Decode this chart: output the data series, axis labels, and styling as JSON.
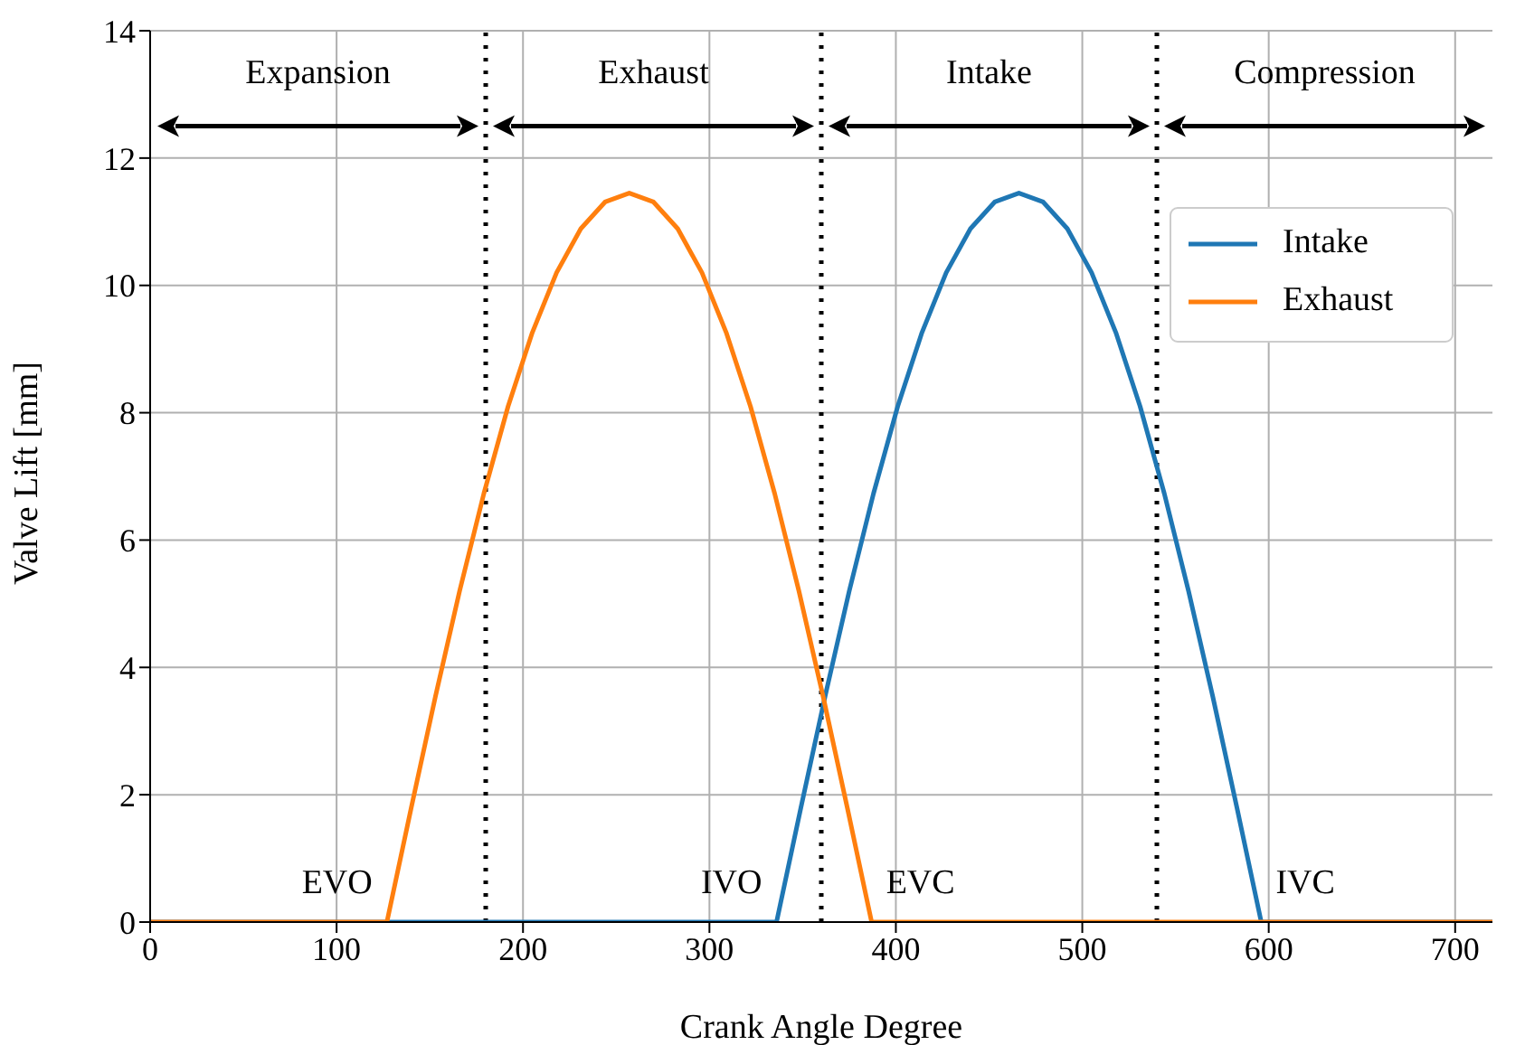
{
  "chart_data": {
    "type": "line",
    "xlabel": "Crank Angle Degree",
    "ylabel": "Valve Lift [mm]",
    "xlim": [
      0,
      720
    ],
    "ylim": [
      0,
      14
    ],
    "xticks": [
      0,
      100,
      200,
      300,
      400,
      500,
      600,
      700
    ],
    "yticks": [
      0,
      2,
      4,
      6,
      8,
      10,
      12,
      14
    ],
    "grid": true,
    "legend": "top right",
    "marker": "none",
    "line_style": "solid",
    "series": [
      {
        "name": "Intake",
        "color": "#1f77b4",
        "x": [
          0,
          336,
          349,
          362,
          375,
          388,
          401,
          414,
          427,
          440,
          453,
          466,
          479,
          492,
          505,
          518,
          531,
          544,
          557,
          570,
          583,
          596,
          720
        ],
        "values": [
          0,
          0,
          1.79,
          3.54,
          5.2,
          6.73,
          8.1,
          9.26,
          10.2,
          10.89,
          11.31,
          11.45,
          11.31,
          10.89,
          10.2,
          9.26,
          8.1,
          6.73,
          5.2,
          3.54,
          1.79,
          0,
          0
        ]
      },
      {
        "name": "Exhaust",
        "color": "#ff7f0e",
        "x": [
          0,
          127,
          140,
          153,
          166,
          179,
          192,
          205,
          218,
          231,
          244,
          257,
          270,
          283,
          296,
          309,
          322,
          335,
          348,
          361,
          374,
          387,
          720
        ],
        "values": [
          0,
          0,
          1.79,
          3.54,
          5.2,
          6.73,
          8.1,
          9.26,
          10.2,
          10.89,
          11.31,
          11.45,
          11.31,
          10.89,
          10.2,
          9.26,
          8.1,
          6.73,
          5.2,
          3.54,
          1.79,
          0,
          0
        ]
      }
    ],
    "ref_lines": [
      {
        "axis": "x",
        "value": 180,
        "color": "#000000",
        "line_style": "dotted"
      },
      {
        "axis": "x",
        "value": 360,
        "color": "#000000",
        "line_style": "dotted"
      },
      {
        "axis": "x",
        "value": 540,
        "color": "#000000",
        "line_style": "dotted"
      }
    ],
    "annotations": [
      "Expansion",
      "Exhaust",
      "Intake",
      "Compression",
      {
        "text": "EVO",
        "x": 127,
        "y": 0
      },
      {
        "text": "IVO",
        "x": 336,
        "y": 0
      },
      {
        "text": "EVC",
        "x": 387,
        "y": 0
      },
      {
        "text": "IVC",
        "x": 596,
        "y": 0
      }
    ]
  }
}
